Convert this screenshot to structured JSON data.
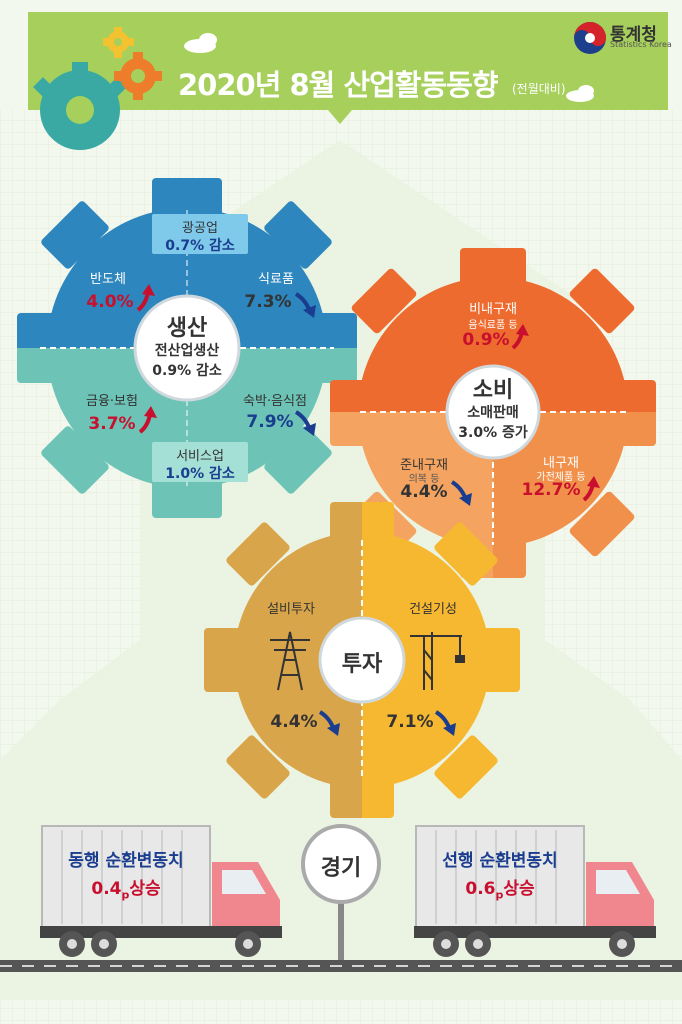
{
  "header": {
    "title": "2020년 8월 산업활동동향",
    "subtitle": "(전월대비)",
    "logo_kr": "통계청",
    "logo_en": "Statistics Korea"
  },
  "production": {
    "title": "생산",
    "total_label": "전산업생산",
    "total_value": "0.9% 감소",
    "mining": {
      "label": "광공업",
      "value": "0.7% 감소"
    },
    "service": {
      "label": "서비스업",
      "value": "1.0% 감소"
    },
    "semiconductor": {
      "label": "반도체",
      "value": "4.0%",
      "trend": "up"
    },
    "food": {
      "label": "식료품",
      "value": "7.3%",
      "trend": "down"
    },
    "finance": {
      "label": "금융·보험",
      "value": "3.7%",
      "trend": "up"
    },
    "lodging": {
      "label": "숙박·음식점",
      "value": "7.9%",
      "trend": "down"
    }
  },
  "consumption": {
    "title": "소비",
    "total_label": "소매판매",
    "total_value": "3.0% 증가",
    "nondurable": {
      "label": "비내구재",
      "sub": "음식료품 등",
      "value": "0.9%",
      "trend": "up"
    },
    "semidurable": {
      "label": "준내구재",
      "sub": "의복 등",
      "value": "4.4%",
      "trend": "down"
    },
    "durable": {
      "label": "내구재",
      "sub": "가전제품 등",
      "value": "12.7%",
      "trend": "up"
    }
  },
  "investment": {
    "title": "투자",
    "facility": {
      "label": "설비투자",
      "value": "4.4%",
      "trend": "down"
    },
    "construction": {
      "label": "건설기성",
      "value": "7.1%",
      "trend": "down"
    }
  },
  "economy": {
    "title": "경기",
    "coincident": {
      "label": "동행 순환변동치",
      "value": "0.4",
      "subscript": "p",
      "suffix": "상승"
    },
    "leading": {
      "label": "선행 순환변동치",
      "value": "0.6",
      "subscript": "p",
      "suffix": "상승"
    }
  },
  "colors": {
    "header_green": "#a6cf5c",
    "production_blue": "#2d86bd",
    "production_teal": "#6cc3b6",
    "consumption_orange": "#ee6b2f",
    "consumption_light": "#f4a460",
    "investment_tan": "#d9a54a",
    "investment_yellow": "#f6b830",
    "truck_pink": "#f0868e",
    "value_red": "#c8102e",
    "value_blue": "#1a3d8f"
  }
}
